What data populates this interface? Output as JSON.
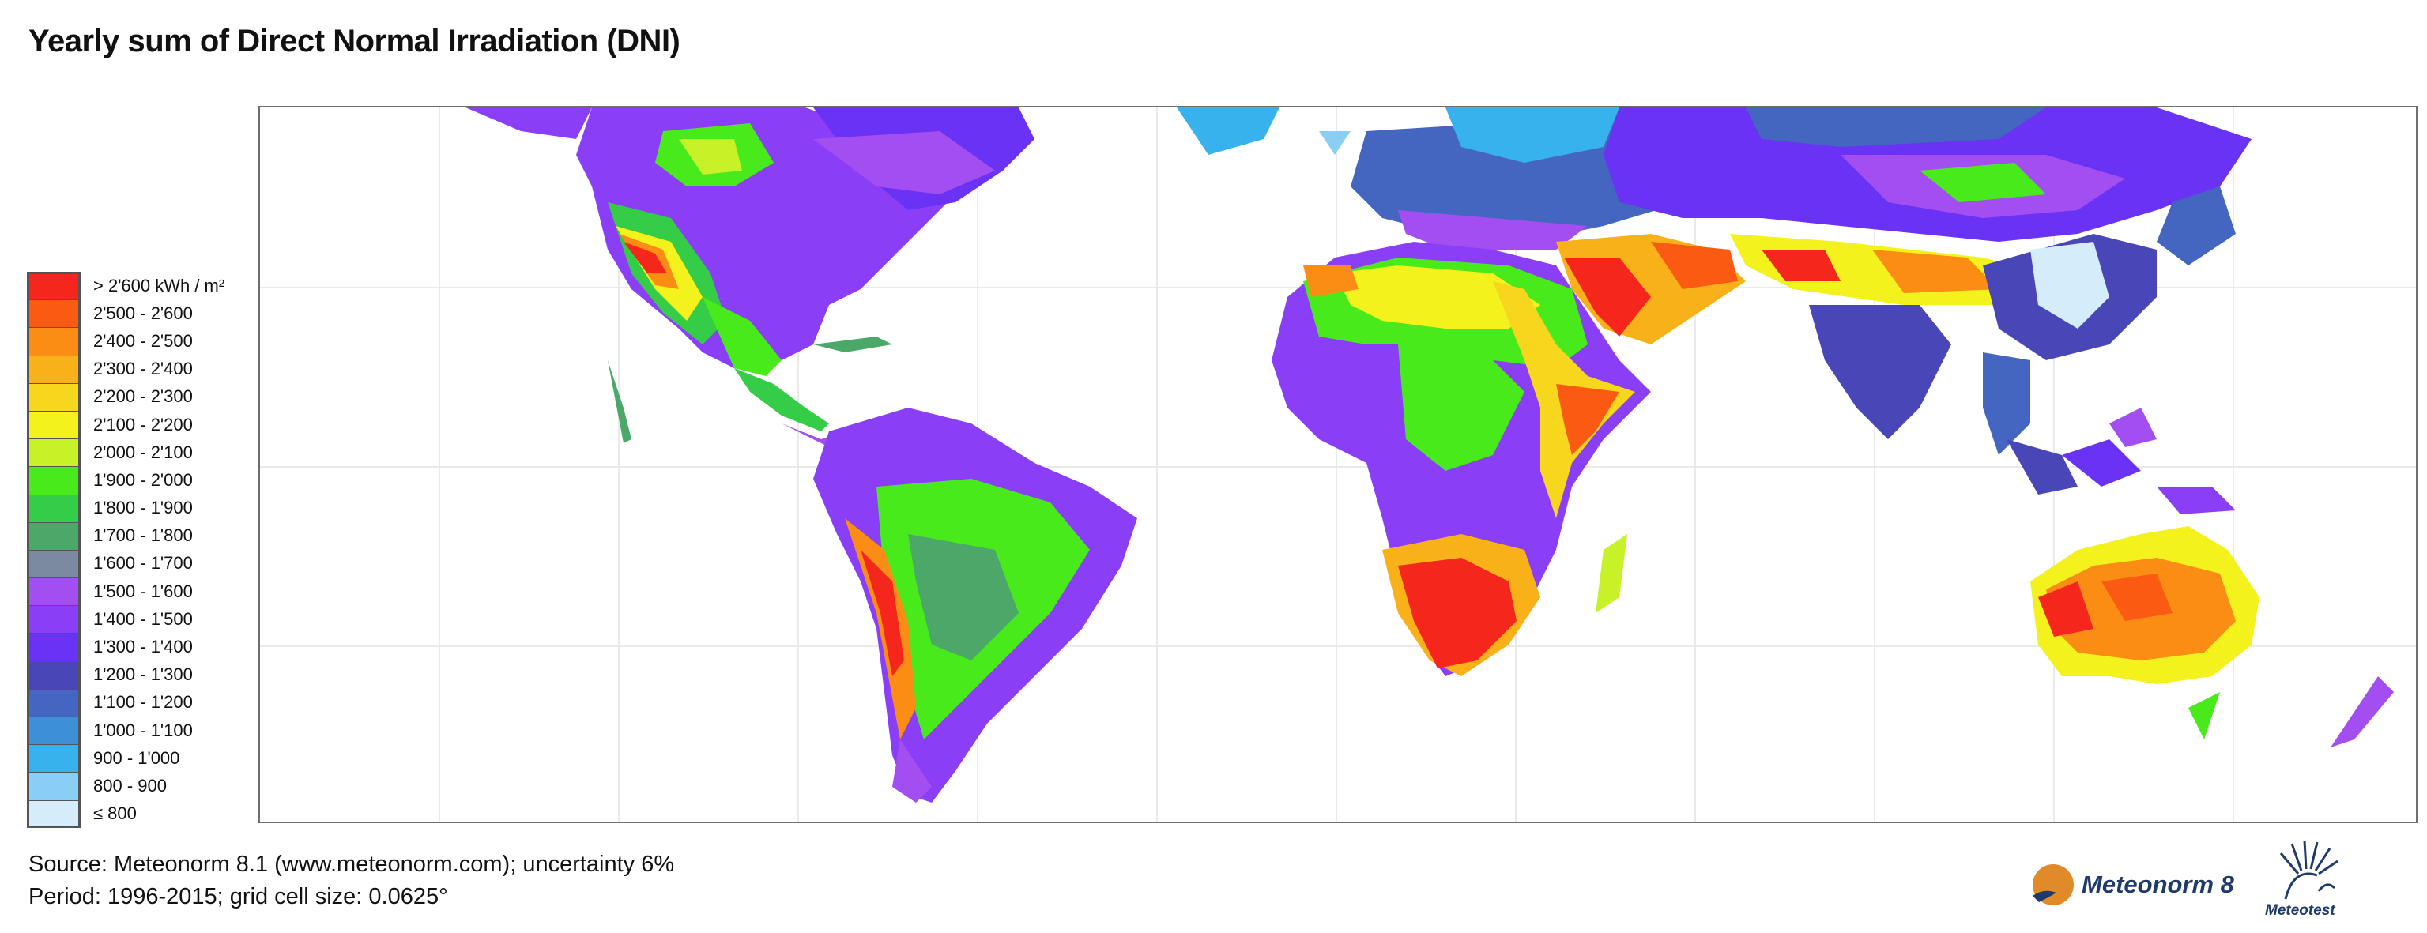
{
  "title": "Yearly sum of Direct Normal Irradiation (DNI)",
  "legend": {
    "unit_label": "> 2'600 kWh / m",
    "unit_sup": "2",
    "items": [
      {
        "label": "> 2'600 kWh / m²",
        "color": "#f5261c"
      },
      {
        "label": "2'500 - 2'600",
        "color": "#fb5a12"
      },
      {
        "label": "2'400 - 2'500",
        "color": "#fb8c14"
      },
      {
        "label": "2'300 - 2'400",
        "color": "#f9b11a"
      },
      {
        "label": "2'200 - 2'300",
        "color": "#f7d61e"
      },
      {
        "label": "2'100 - 2'200",
        "color": "#f3f21d"
      },
      {
        "label": "2'000 - 2'100",
        "color": "#c6f227"
      },
      {
        "label": "1'900 - 2'000",
        "color": "#49ea1c"
      },
      {
        "label": "1'800 - 1'900",
        "color": "#35cc47"
      },
      {
        "label": "1'700 - 1'800",
        "color": "#4ca868"
      },
      {
        "label": "1'600 - 1'700",
        "color": "#7b8aa0"
      },
      {
        "label": "1'500 - 1'600",
        "color": "#a24ef0"
      },
      {
        "label": "1'400 - 1'500",
        "color": "#8a3ff6"
      },
      {
        "label": "1'300 - 1'400",
        "color": "#6a32f5"
      },
      {
        "label": "1'200 - 1'300",
        "color": "#4946b8"
      },
      {
        "label": "1'100 - 1'200",
        "color": "#4466c0"
      },
      {
        "label": "1'000 - 1'100",
        "color": "#3d8fd6"
      },
      {
        "label": "900 - 1'000",
        "color": "#38b2ec"
      },
      {
        "label": "800 - 900",
        "color": "#8acef5"
      },
      {
        "label": "≤ 800",
        "color": "#d5ecfb"
      }
    ]
  },
  "footer": {
    "source": "Source: Meteonorm 8.1 (www.meteonorm.com); uncertainty 6%",
    "period": "Period: 1996-2015; grid cell size: 0.0625°"
  },
  "logos": {
    "meteonorm": "Meteonorm 8",
    "meteotest": "Meteotest"
  }
}
